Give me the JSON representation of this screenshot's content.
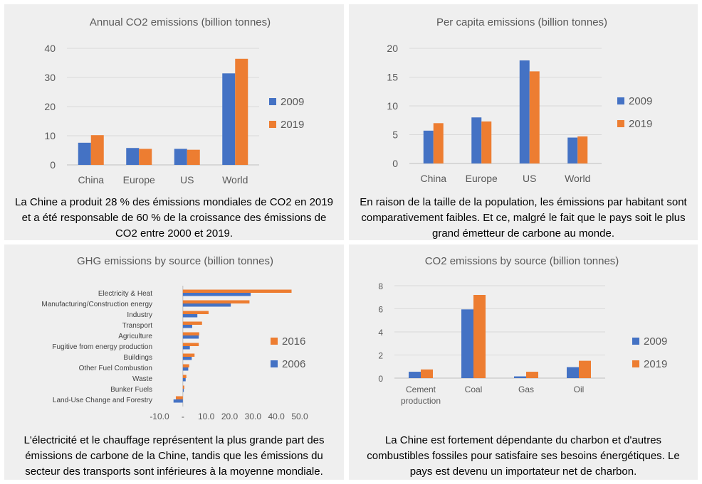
{
  "colors": {
    "s2009": "#4472C4",
    "s2019": "#ED7D31",
    "grid": "#d9d9d9",
    "axis": "#bfbfbf"
  },
  "panels": {
    "p1": {
      "caption": "La Chine a produit 28 % des émissions mondiales de CO2 en 2019 et a été responsable de 60 % de la croissance des émissions de CO2 entre 2000 et 2019."
    },
    "p2": {
      "caption": "En raison de la taille de la population, les émissions par habitant sont comparativement faibles. Et ce, malgré le fait que le pays soit le plus grand émetteur de carbone au monde."
    },
    "p3": {
      "caption": "L'électricité et le chauffage représentent la plus grande part des émissions de carbone de la Chine, tandis que les émissions du secteur des transports sont inférieures à la moyenne mondiale."
    },
    "p4": {
      "caption": "La Chine est fortement dépendante du charbon et d'autres combustibles fossiles pour satisfaire ses besoins énergétiques. Le pays est devenu un importateur net de charbon."
    }
  },
  "chart_data": [
    {
      "type": "bar",
      "title": "Annual CO2 emissions (billion tonnes)",
      "categories": [
        "China",
        "Europe",
        "US",
        "World"
      ],
      "series": [
        {
          "name": "2009",
          "values": [
            7.6,
            5.8,
            5.5,
            31.4
          ]
        },
        {
          "name": "2019",
          "values": [
            10.2,
            5.5,
            5.2,
            36.4
          ]
        }
      ],
      "ylim": [
        0,
        40
      ],
      "yticks": [
        0,
        10,
        20,
        30,
        40
      ],
      "grid": true,
      "legend": "right"
    },
    {
      "type": "bar",
      "title": "Per capita emissions (billion tonnes)",
      "categories": [
        "China",
        "Europe",
        "US",
        "World"
      ],
      "series": [
        {
          "name": "2009",
          "values": [
            5.7,
            8.0,
            17.9,
            4.5
          ]
        },
        {
          "name": "2019",
          "values": [
            7.0,
            7.3,
            16.0,
            4.7
          ]
        }
      ],
      "ylim": [
        0,
        20
      ],
      "yticks": [
        0,
        5,
        10,
        15,
        20
      ],
      "grid": true,
      "legend": "right"
    },
    {
      "type": "bar",
      "orientation": "horizontal",
      "title": "GHG emissions by source (billion tonnes)",
      "categories": [
        "Electricity & Heat",
        "Manufacturing/Construction energy",
        "Industry",
        "Transport",
        "Agriculture",
        "Fugitive from energy production",
        "Buildings",
        "Other Fuel Combustion",
        "Waste",
        "Bunker Fuels",
        "Land-Use Change and Forestry"
      ],
      "series": [
        {
          "name": "2016",
          "values": [
            46.5,
            28.5,
            11.0,
            8.2,
            7.0,
            6.8,
            5.0,
            2.7,
            1.5,
            0.6,
            -3.0
          ]
        },
        {
          "name": "2006",
          "values": [
            29.0,
            20.5,
            6.2,
            4.0,
            6.8,
            3.0,
            3.8,
            2.3,
            1.2,
            0.4,
            -4.0
          ]
        }
      ],
      "xlim": [
        -10,
        50
      ],
      "xticks": [
        "-10.0",
        "-",
        "10.0",
        "20.0",
        "30.0",
        "40.0",
        "50.0"
      ],
      "grid": false,
      "legend": "right"
    },
    {
      "type": "bar",
      "title": "CO2 emissions by source (billion tonnes)",
      "categories": [
        "Cement production",
        "Coal",
        "Gas",
        "Oil"
      ],
      "series": [
        {
          "name": "2009",
          "values": [
            0.55,
            5.95,
            0.15,
            0.95
          ]
        },
        {
          "name": "2019",
          "values": [
            0.75,
            7.2,
            0.55,
            1.5
          ]
        }
      ],
      "ylim": [
        0,
        8
      ],
      "yticks": [
        0,
        2,
        4,
        6,
        8
      ],
      "grid": true,
      "legend": "right"
    }
  ]
}
